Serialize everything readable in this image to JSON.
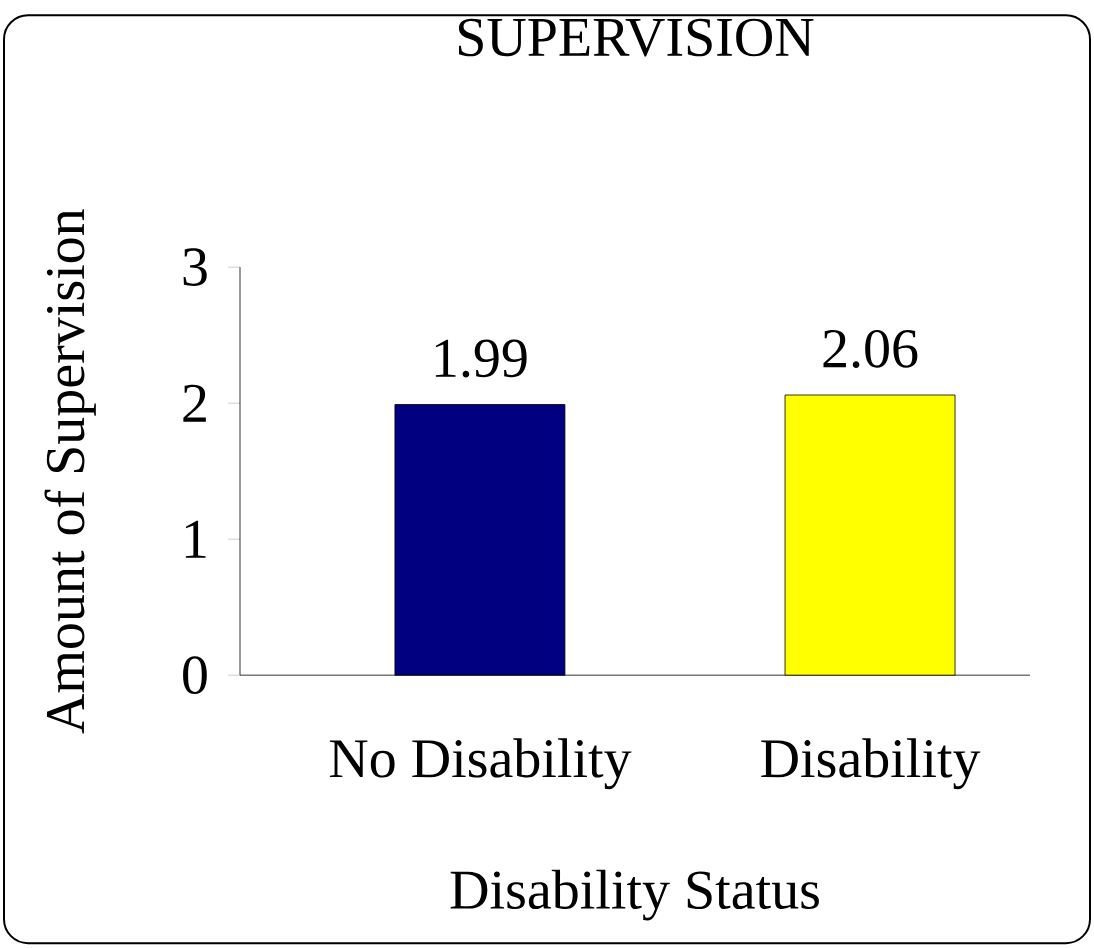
{
  "chart_data": {
    "type": "bar",
    "title": "SUPERVISION",
    "xlabel": "Disability Status",
    "ylabel": "Amount of Supervision",
    "categories": [
      "No Disability",
      "Disability"
    ],
    "values": [
      1.99,
      2.06
    ],
    "colors": [
      "#000080",
      "#ffff00"
    ],
    "ylim": [
      0,
      3
    ],
    "yticks": [
      0,
      1,
      2,
      3
    ],
    "grid": false,
    "data_labels": true
  }
}
